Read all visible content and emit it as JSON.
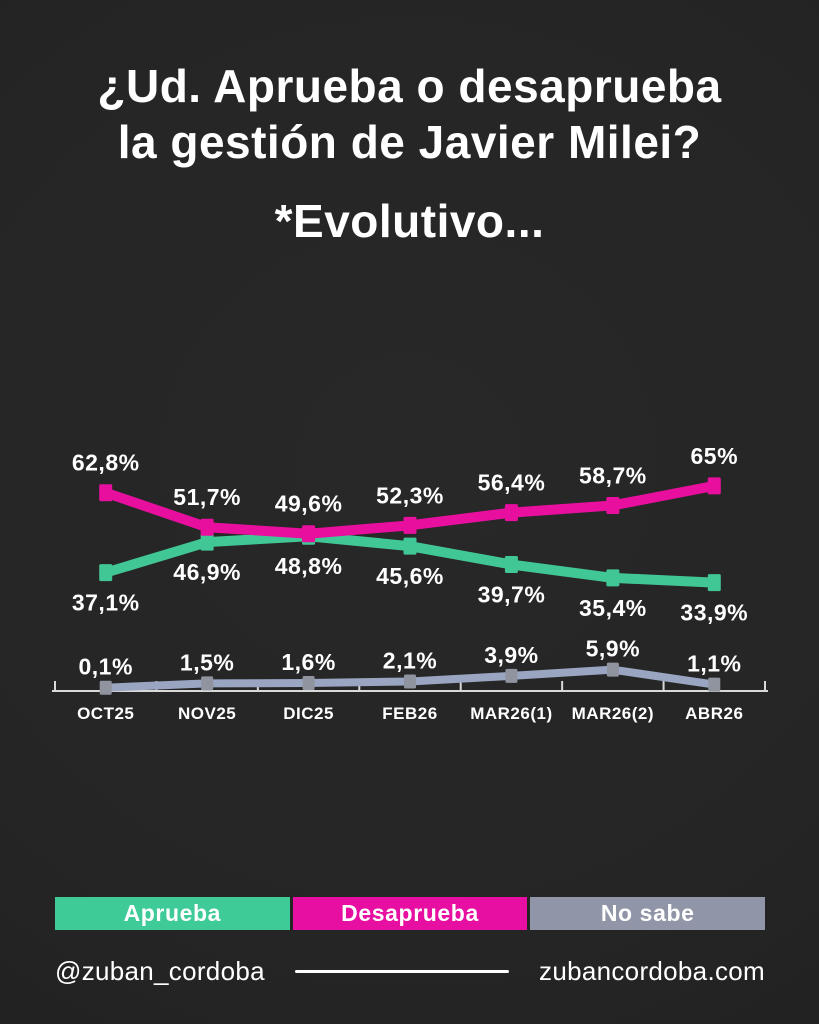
{
  "page": {
    "background": "#252525",
    "text_color": "#ffffff",
    "title_line1": "¿Ud. Aprueba o desaprueba",
    "title_line2": "la gestión de Javier Milei?",
    "subtitle": "*Evolutivo...",
    "footer": {
      "handle": "@zuban_cordoba",
      "website": "zubancordoba.com"
    }
  },
  "chart_data": {
    "type": "line",
    "title": "¿Ud. Aprueba o desaprueba la gestión de Javier Milei? *Evolutivo...",
    "xlabel": "",
    "ylabel": "",
    "ylim": [
      0,
      70
    ],
    "grid": false,
    "legend_position": "bottom",
    "axis_color": "#d9d9d9",
    "categories": [
      "OCT25",
      "NOV25",
      "DIC25",
      "FEB26",
      "MAR26(1)",
      "MAR26(2)",
      "ABR26"
    ],
    "series": [
      {
        "name": "Aprueba",
        "color": "#41c795",
        "values": [
          37.1,
          46.9,
          48.8,
          45.6,
          39.7,
          35.4,
          33.9
        ],
        "labels": [
          "37,1%",
          "46,9%",
          "48,8%",
          "45,6%",
          "39,7%",
          "35,4%",
          "33,9%"
        ],
        "label_position": "below"
      },
      {
        "name": "Desaprueba",
        "color": "#e80f9f",
        "values": [
          62.8,
          51.7,
          49.6,
          52.3,
          56.4,
          58.7,
          65
        ],
        "labels": [
          "62,8%",
          "51,7%",
          "49,6%",
          "52,3%",
          "56,4%",
          "58,7%",
          "65%"
        ],
        "label_position": "above"
      },
      {
        "name": "No sabe",
        "color": "#9aa5c1",
        "marker_color": "#8f949f",
        "values": [
          0.1,
          1.5,
          1.6,
          2.1,
          3.9,
          5.9,
          1.1
        ],
        "labels": [
          "0,1%",
          "1,5%",
          "1,6%",
          "2,1%",
          "3,9%",
          "5,9%",
          "1,1%"
        ],
        "label_position": "above"
      }
    ],
    "legend": [
      {
        "label": "Aprueba",
        "color": "#3fcb98"
      },
      {
        "label": "Desaprueba",
        "color": "#e60fa2"
      },
      {
        "label": "No sabe",
        "color": "#9096a8"
      }
    ]
  }
}
